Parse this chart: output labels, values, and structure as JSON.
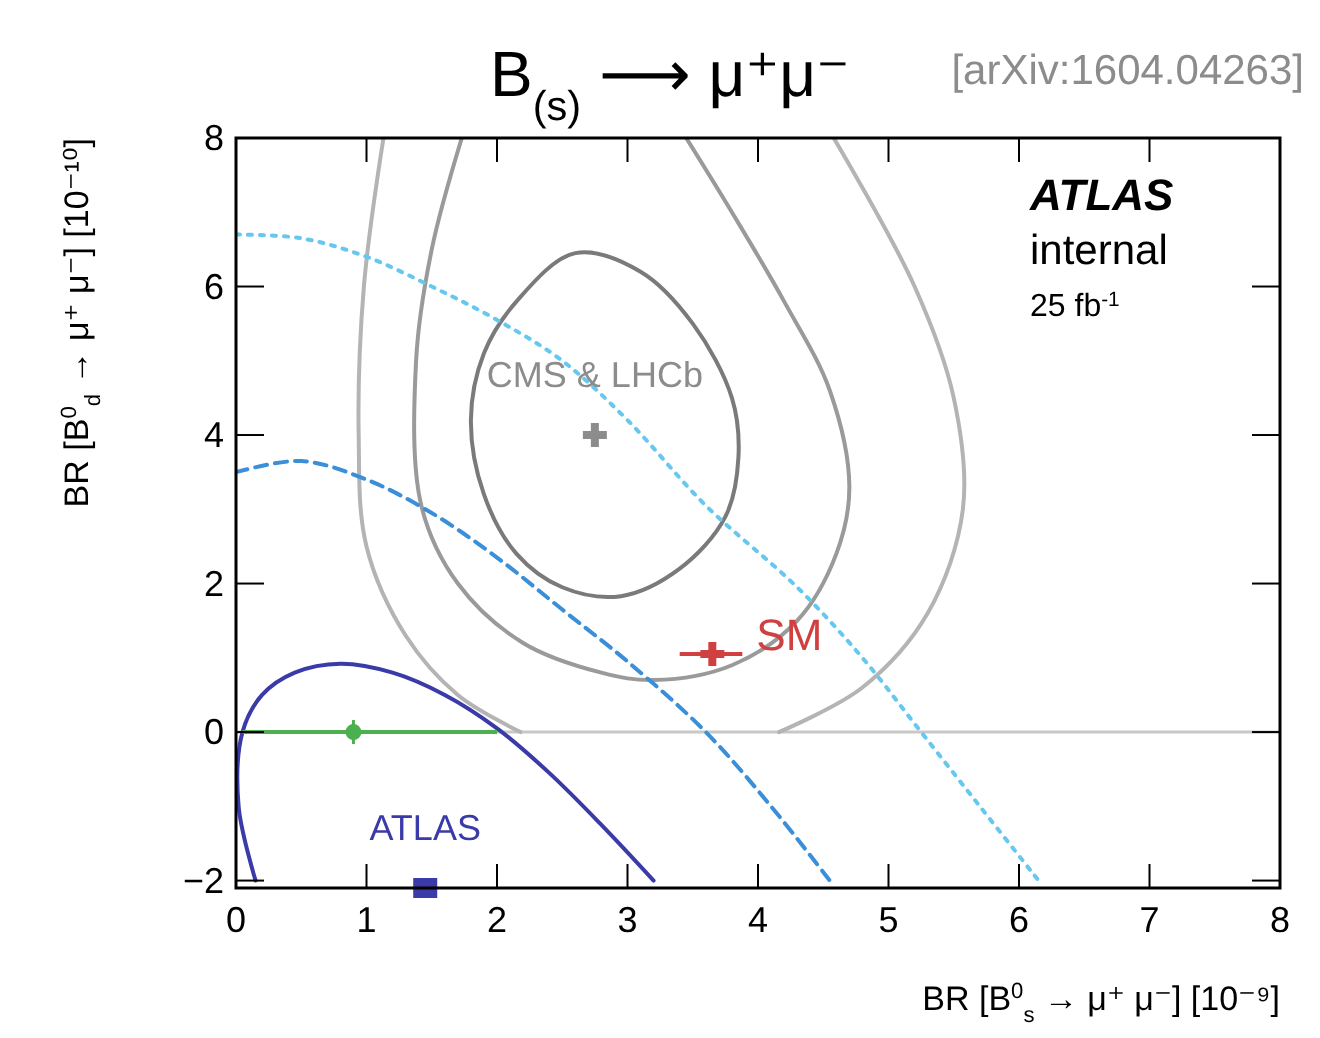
{
  "chart_data": {
    "type": "line",
    "title": "B$_{(s)}$ ⟶ μ⁺μ⁻",
    "xlabel": "BR [B$^{0}$$_{s}$ → μ⁺ μ⁻] [10⁻⁹]",
    "ylabel": "BR [B$^{0}$$_{d}$ → μ⁺ μ⁻] [10⁻¹⁰]",
    "annotations": [
      "[arXiv:1604.04263]",
      "ATLAS",
      "internal",
      "25 fb$^{-1}$",
      {
        "text": "SM",
        "x": 3.65,
        "y": 1.05
      }
    ],
    "xlim": [
      0,
      8
    ],
    "ylim": [
      -2.1,
      8
    ],
    "xticks": [
      0,
      1,
      2,
      3,
      4,
      5,
      6,
      7,
      8
    ],
    "yticks": [
      -2,
      0,
      2,
      4,
      6,
      8
    ],
    "grid": false,
    "ref_lines": [
      {
        "axis": "y",
        "value": 0,
        "color": "#c8c8c8"
      }
    ],
    "series": [
      {
        "color": "#b4b4b4",
        "line_style": "solid",
        "x": [
          1.13,
          0.98,
          0.94,
          1.0,
          1.3,
          1.7,
          2.18
        ],
        "values": [
          8,
          6,
          4,
          2.5,
          1.3,
          0.5,
          0
        ]
      },
      {
        "color": "#b4b4b4",
        "line_style": "solid",
        "x": [
          4.16,
          4.8,
          5.3,
          5.57,
          5.5,
          5.2,
          4.58
        ],
        "values": [
          0,
          0.6,
          1.6,
          3.0,
          4.5,
          6.0,
          8
        ]
      },
      {
        "color": "#9a9a9a",
        "line_style": "solid",
        "x": [
          1.73,
          1.5,
          1.38,
          1.42,
          1.7,
          2.2,
          2.8,
          3.2,
          3.8,
          4.3,
          4.6,
          4.7,
          4.55,
          4.2,
          3.8,
          3.45
        ],
        "values": [
          8,
          6.5,
          5.0,
          3.05,
          2.0,
          1.2,
          0.8,
          0.7,
          0.9,
          1.5,
          2.4,
          3.3,
          4.6,
          5.8,
          7.0,
          8
        ]
      },
      {
        "color": "#66c8ee",
        "line_style": "dotted",
        "x": [
          0,
          0.5,
          1.0,
          1.5,
          2.0,
          2.5,
          3.0,
          3.6,
          4.3,
          4.8,
          5.25,
          5.7,
          6.15
        ],
        "values": [
          6.7,
          6.65,
          6.4,
          6.0,
          5.55,
          5.0,
          4.2,
          3.05,
          1.95,
          1.0,
          0,
          -1.0,
          -2
        ]
      },
      {
        "color": "#3a8fd8",
        "line_style": "dashed",
        "x": [
          0,
          0.5,
          1.0,
          1.5,
          2.0,
          2.5,
          3.0,
          3.6,
          4.1,
          4.55
        ],
        "values": [
          3.5,
          3.65,
          3.4,
          2.95,
          2.35,
          1.65,
          0.95,
          0,
          -1.0,
          -2
        ]
      },
      {
        "color": "#3a3aa8",
        "line_style": "solid",
        "x": [
          0.15,
          0.02,
          0.05,
          0.2,
          0.45,
          0.8,
          1.2,
          1.6,
          2.0,
          2.4,
          2.8,
          3.2
        ],
        "values": [
          -2,
          -1,
          0,
          0.5,
          0.8,
          0.92,
          0.8,
          0.5,
          0.05,
          -0.55,
          -1.25,
          -2
        ]
      },
      {
        "type": "scatter",
        "color": "#4caf50",
        "marker": "circle",
        "x": [
          0.9
        ],
        "values": [
          0
        ],
        "xerrors": [
          [
            0.05,
            2.0
          ]
        ]
      },
      {
        "type": "scatter",
        "name": "ATLAS",
        "color": "#3a3aa8",
        "marker": "square",
        "x": [
          1.45
        ],
        "values": [
          -2.1
        ]
      },
      {
        "type": "scatter",
        "name": "CMS & LHCb",
        "color": "#8c8c8c",
        "marker": "cross",
        "x": [
          2.75
        ],
        "values": [
          4.0
        ]
      },
      {
        "type": "scatter",
        "color": "#d04040",
        "marker": "cross",
        "x": [
          3.65
        ],
        "values": [
          1.05
        ],
        "xerrors": [
          [
            3.4,
            3.88
          ]
        ]
      }
    ]
  }
}
